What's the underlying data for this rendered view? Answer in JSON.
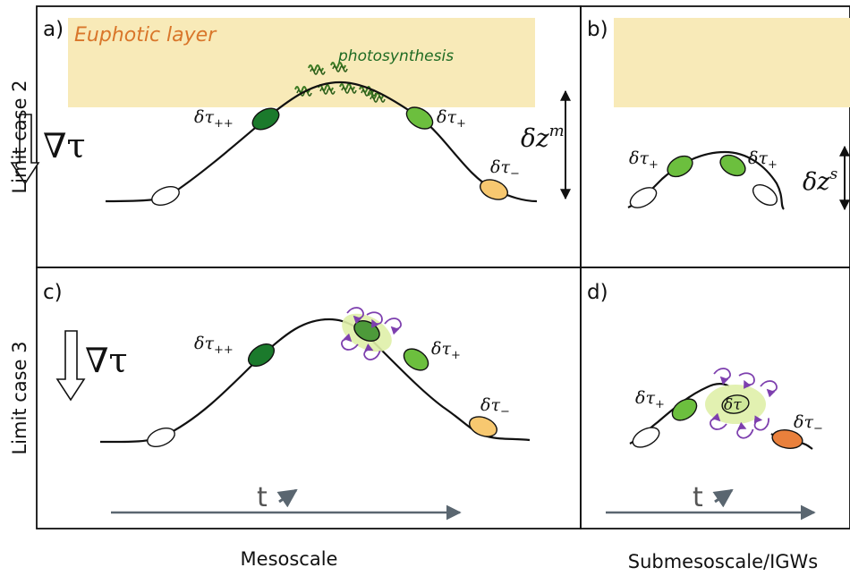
{
  "colors": {
    "euphotic": "#f8eab8",
    "dark_green": "#1b7a2c",
    "mid_green": "#6cbf3e",
    "light_orange": "#f7c870",
    "orange": "#e9803c",
    "purple": "#7d3fae",
    "halo": "#dff0a8",
    "arrow_gray": "#5a6670",
    "euphotic_text": "#d9762a",
    "photo_text": "#1f6b23"
  },
  "panels": {
    "a": {
      "letter": "a)",
      "euphotic_label": "Euphotic layer",
      "photosynthesis_label": "photosynthesis",
      "tau_left": "δτ",
      "tau_left_sub": "++",
      "tau_right": "δτ",
      "tau_right_sub": "+",
      "tau_low": "δτ",
      "tau_low_sub": "−",
      "depth_label": "δz",
      "depth_sup": "m",
      "gradient_label": "∇τ"
    },
    "b": {
      "letter": "b)",
      "tau_left": "δτ",
      "tau_left_sub": "+",
      "tau_right": "δτ",
      "tau_right_sub": "+",
      "depth_label": "δz",
      "depth_sup": "s"
    },
    "c": {
      "letter": "c)",
      "tau_left": "δτ",
      "tau_left_sub": "++",
      "tau_right": "δτ",
      "tau_right_sub": "+",
      "tau_low": "δτ",
      "tau_low_sub": "−",
      "gradient_label": "∇τ",
      "time_label": "t"
    },
    "d": {
      "letter": "d)",
      "tau_left": "δτ",
      "tau_left_sub": "+",
      "tau_center": "δτ",
      "tau_right": "δτ",
      "tau_right_sub": "−",
      "time_label": "t"
    }
  },
  "row_labels": [
    "Limit case 2",
    "Limit case 3"
  ],
  "column_labels": [
    "Mesoscale",
    "Submesoscale/IGWs"
  ]
}
